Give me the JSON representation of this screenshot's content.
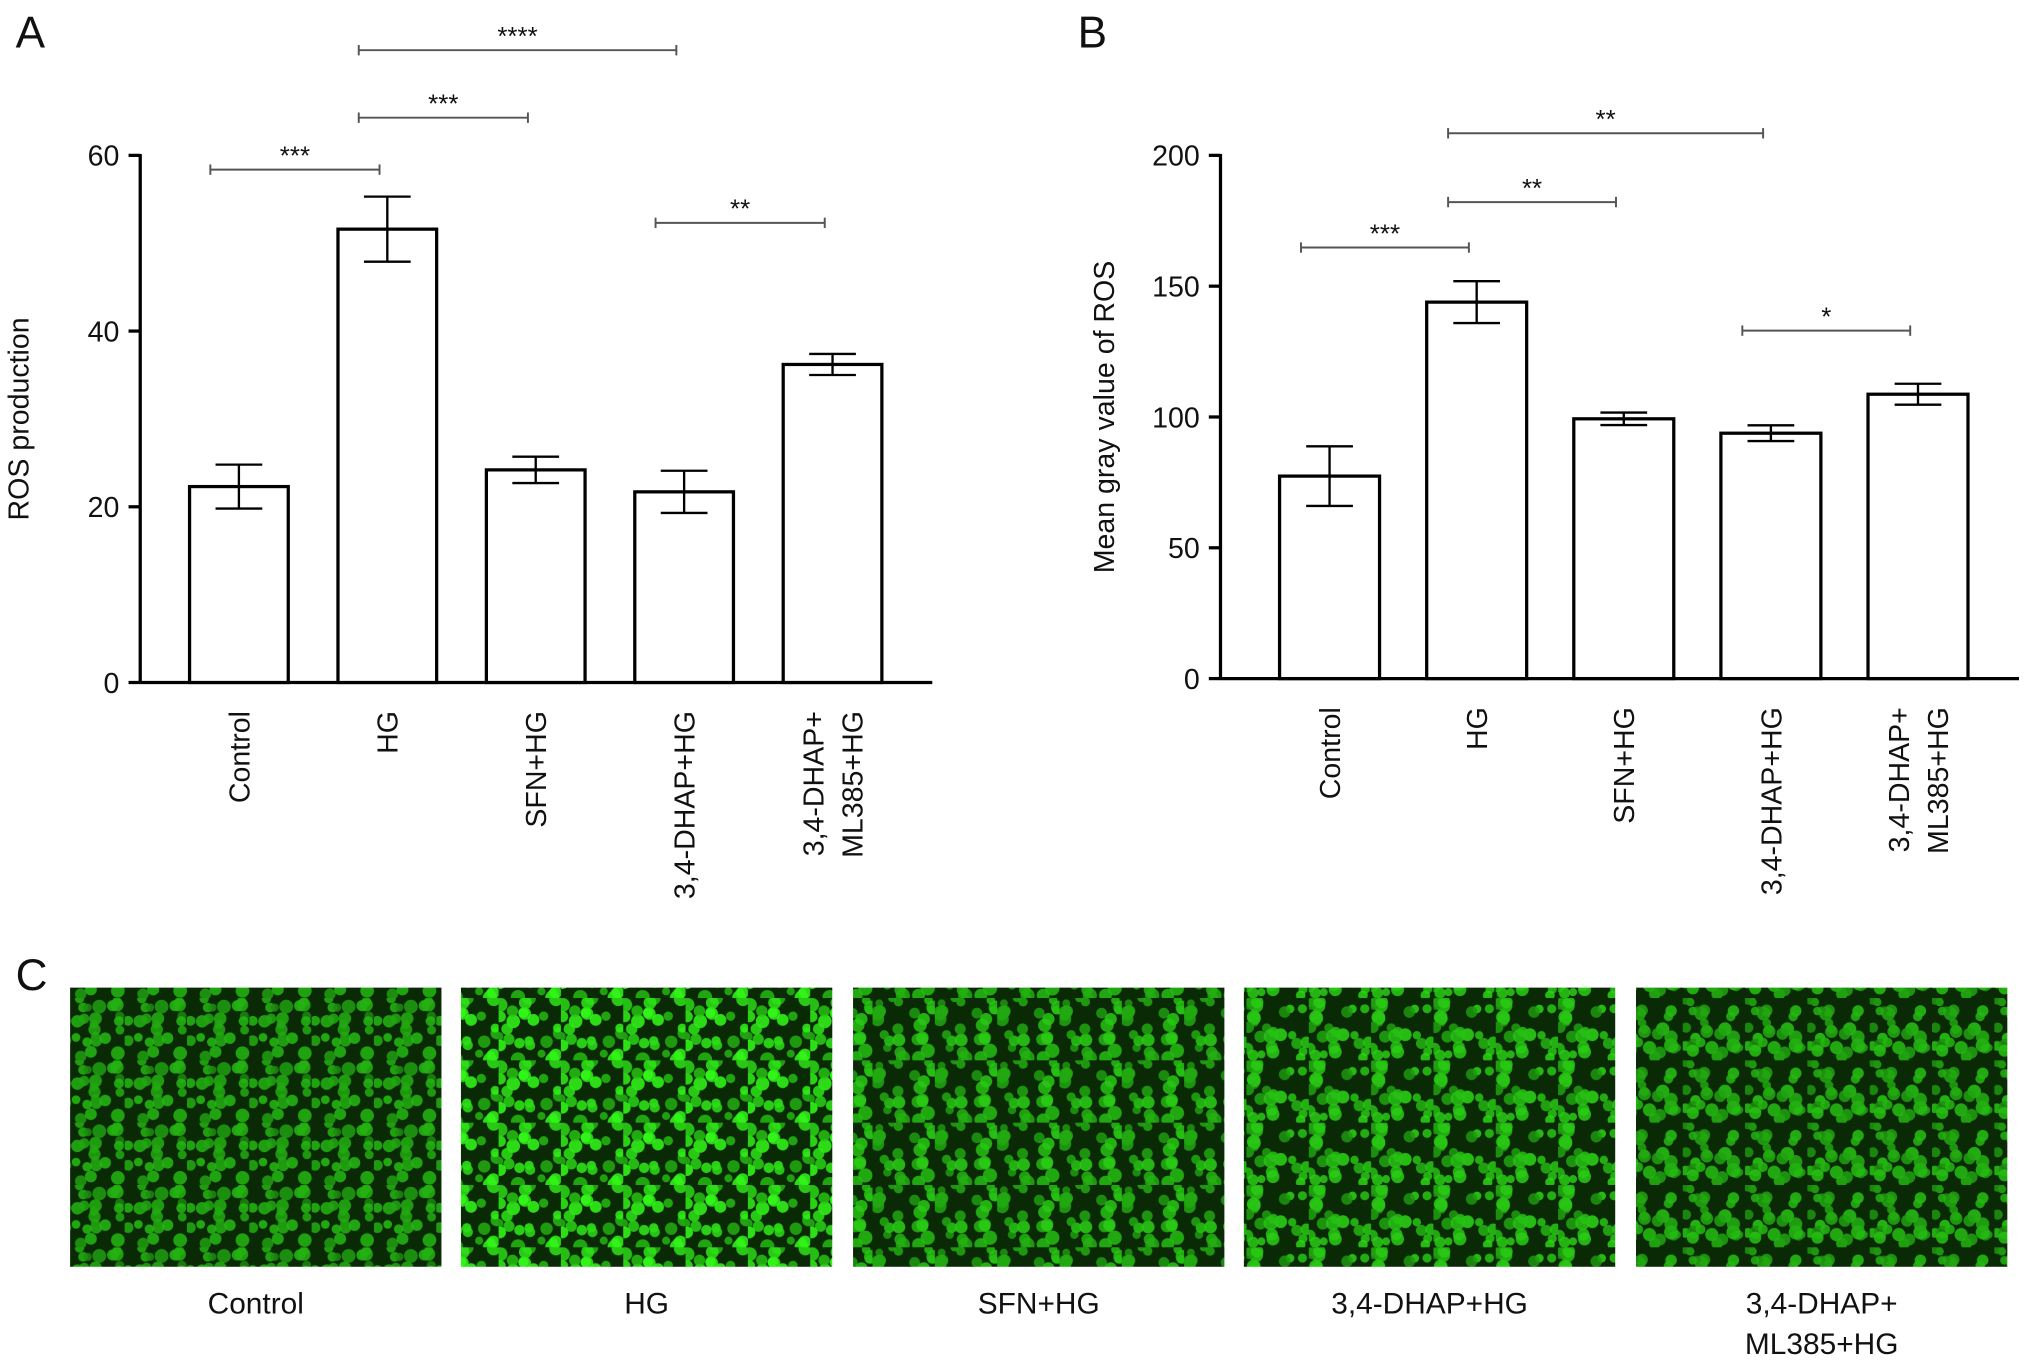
{
  "chart_data": [
    {
      "type": "bar",
      "panel": "A",
      "ylabel": "ROS production",
      "categories": [
        "Control",
        "HG",
        "SFN+HG",
        "3,4-DHAP+HG",
        "3,4-DHAP+\nML385+HG"
      ],
      "values": [
        22.3,
        51.6,
        24.2,
        21.7,
        36.2
      ],
      "errors": [
        2.5,
        3.7,
        1.5,
        2.4,
        1.2
      ],
      "ylim": [
        0,
        60
      ],
      "yticks": [
        0,
        20,
        40,
        60
      ],
      "color": "#ffffff",
      "edgecolor": "#000000",
      "annotations": [
        {
          "text": "***",
          "between": [
            "Control",
            "HG"
          ]
        },
        {
          "text": "***",
          "between": [
            "HG",
            "SFN+HG"
          ]
        },
        {
          "text": "****",
          "between": [
            "HG",
            "3,4-DHAP+HG"
          ]
        },
        {
          "text": "**",
          "between": [
            "3,4-DHAP+HG",
            "3,4-DHAP+\nML385+HG"
          ]
        }
      ]
    },
    {
      "type": "bar",
      "panel": "B",
      "ylabel": "Mean gray value of ROS",
      "categories": [
        "Control",
        "HG",
        "SFN+HG",
        "3,4-DHAP+HG",
        "3,4-DHAP+\nML385+HG"
      ],
      "values": [
        77.4,
        143.9,
        99.3,
        93.8,
        108.7
      ],
      "errors": [
        11.4,
        8,
        2.4,
        3,
        4
      ],
      "ylim": [
        0,
        200
      ],
      "yticks": [
        0,
        50,
        100,
        150,
        200
      ],
      "color": "#ffffff",
      "edgecolor": "#000000",
      "annotations": [
        {
          "text": "***",
          "between": [
            "Control",
            "HG"
          ]
        },
        {
          "text": "**",
          "between": [
            "HG",
            "SFN+HG"
          ]
        },
        {
          "text": "**",
          "between": [
            "HG",
            "3,4-DHAP+HG"
          ]
        },
        {
          "text": "*",
          "between": [
            "3,4-DHAP+HG",
            "3,4-DHAP+\nML385+HG"
          ]
        }
      ]
    }
  ],
  "panel_c": {
    "label": "C",
    "images": [
      {
        "label": "Control"
      },
      {
        "label": "HG"
      },
      {
        "label": "SFN+HG"
      },
      {
        "label": "3,4-DHAP+HG"
      },
      {
        "label": "3,4-DHAP+\nML385+HG"
      }
    ]
  }
}
